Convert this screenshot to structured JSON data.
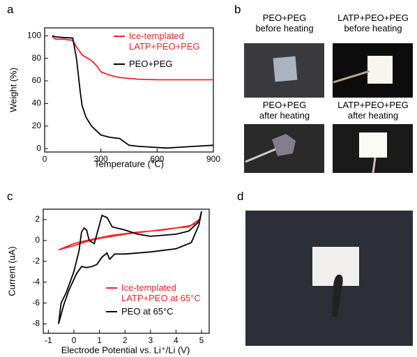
{
  "panel_labels": [
    "a",
    "b",
    "c",
    "d"
  ],
  "chart_data": [
    {
      "type": "line",
      "xlabel": "Temperature (℃)",
      "ylabel": "Weight (%)",
      "xlim": [
        0,
        900
      ],
      "ylim": [
        -3,
        107
      ],
      "xticks": [
        0,
        300,
        600,
        900
      ],
      "yticks": [
        0,
        20,
        40,
        60,
        80,
        100
      ],
      "legend": "upper right",
      "series": [
        {
          "name": "Ice-templated\nLATP+PEO+PEG",
          "color": "#ff2020",
          "x": [
            40,
            60,
            100,
            150,
            170,
            200,
            250,
            280,
            300,
            350,
            400,
            500,
            600,
            700,
            800,
            900
          ],
          "values": [
            99,
            97,
            97,
            96,
            90,
            83,
            78,
            73,
            68,
            65,
            63,
            61.5,
            61,
            61,
            61,
            61
          ]
        },
        {
          "name": "PEO+PEG",
          "color": "#000000",
          "x": [
            40,
            60,
            100,
            150,
            170,
            190,
            200,
            220,
            250,
            300,
            350,
            400,
            450,
            500,
            600,
            650,
            700,
            800,
            900
          ],
          "values": [
            100,
            99,
            98.5,
            98,
            80,
            50,
            38,
            28,
            20,
            12,
            10,
            9,
            3,
            2,
            1,
            0.5,
            1,
            2,
            3
          ]
        }
      ]
    },
    {
      "type": "line",
      "xlabel": "Electrode Potential vs. Li⁺/Li (V)",
      "ylabel": "Current (uA)",
      "xlim": [
        -1.2,
        5.3
      ],
      "ylim": [
        -8.9,
        3
      ],
      "xticks": [
        -1,
        0,
        1,
        2,
        3,
        4,
        5
      ],
      "yticks": [
        -8,
        -6,
        -4,
        -2,
        0,
        2
      ],
      "legend": "lower right",
      "series": [
        {
          "name": "Ice-templated\nLATP+PEO at 65°C",
          "color": "#ff2020",
          "x": [
            -0.6,
            0,
            0.5,
            1,
            1.5,
            2,
            3,
            4,
            4.5,
            4.8,
            4.9,
            4.5,
            4,
            3.5,
            2.5,
            1.5,
            0.5,
            0,
            -0.6
          ],
          "values": [
            -0.9,
            -0.5,
            -0.1,
            0.2,
            0.4,
            0.6,
            0.9,
            1.2,
            1.4,
            1.6,
            2.0,
            1.3,
            1.2,
            1.0,
            0.8,
            0.5,
            0,
            -0.3,
            -0.9
          ]
        },
        {
          "name": "PEO at 65°C",
          "color": "#000000",
          "x": [
            -0.6,
            -0.5,
            -0.3,
            0,
            0.2,
            0.3,
            0.4,
            0.5,
            0.6,
            0.8,
            1,
            1.1,
            1.3,
            1.5,
            2,
            2.5,
            3,
            4,
            4.5,
            4.9,
            5,
            4.9,
            4.6,
            4,
            3,
            2,
            1.6,
            1.4,
            1.3,
            1.1,
            0.9,
            0.7,
            0.5,
            0.3,
            0.1,
            -0.2,
            -0.4,
            -0.6
          ],
          "values": [
            -8,
            -6,
            -5,
            -3,
            -1,
            0.8,
            1.2,
            1.0,
            0,
            -0.3,
            1.5,
            2.4,
            2.2,
            1.3,
            1.0,
            0.6,
            0.4,
            0.6,
            0.9,
            1.8,
            2.8,
            1.5,
            -0.2,
            -0.8,
            -1.1,
            -1.3,
            -1.3,
            -1.8,
            -1.2,
            -1.6,
            -2.3,
            -2.5,
            -2.6,
            -2.5,
            -3.2,
            -4.8,
            -6.2,
            -8
          ]
        }
      ]
    }
  ],
  "photos": {
    "captions": [
      "PEO+PEG\nbefore heating",
      "LATP+PEO+PEG\nbefore heating",
      "PEO+PEG\nafter heating",
      "LATP+PEO+PEG\nafter heating"
    ]
  }
}
